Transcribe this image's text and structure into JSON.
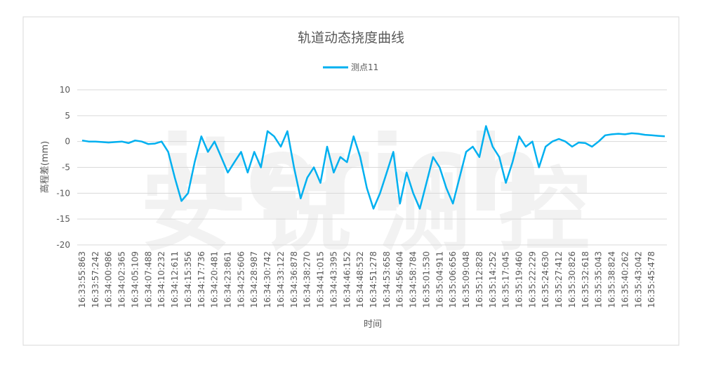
{
  "chart_data": {
    "type": "line",
    "title": "轨道动态挠度曲线",
    "x_label": "时间",
    "y_label": "高程差(mm)",
    "categories": [
      "16:33:55:863",
      null,
      "16:33:57:242",
      null,
      "16:34:00:986",
      null,
      "16:34:02:365",
      null,
      "16:34:05:109",
      null,
      "16:34:07:488",
      null,
      "16:34:10:232",
      null,
      "16:34:12:611",
      null,
      "16:34:15:356",
      null,
      "16:34:17:736",
      null,
      "16:34:20:481",
      null,
      "16:34:23:861",
      null,
      "16:34:25:606",
      null,
      "16:34:28:987",
      null,
      "16:34:30:742",
      null,
      "16:34:33:122",
      null,
      "16:34:36:878",
      null,
      "16:34:38:270",
      null,
      "16:34:41:015",
      null,
      "16:34:43:395",
      null,
      "16:34:46:152",
      null,
      "16:34:48:532",
      null,
      "16:34:51:278",
      null,
      "16:34:53:658",
      null,
      "16:34:56:404",
      null,
      "16:34:58:784",
      null,
      "16:35:01:530",
      null,
      "16:35:04:911",
      null,
      "16:35:06:656",
      null,
      "16:35:09:048",
      null,
      "16:35:12:828",
      null,
      "16:35:14:252",
      null,
      "16:35:17:045",
      null,
      "16:35:19:460",
      null,
      "16:35:22:229",
      null,
      "16:35:24:630",
      null,
      "16:35:27:412",
      null,
      "16:35:30:826",
      null,
      "16:35:32:618",
      null,
      "16:35:35:043",
      null,
      "16:35:38:824",
      null,
      "16:35:40:262",
      null,
      "16:35:43:042",
      null,
      "16:35:45:478",
      null,
      null
    ],
    "series": [
      {
        "name": "测点11",
        "color": "#00b0f0",
        "values": [
          0.2,
          0,
          0,
          -0.1,
          -0.2,
          -0.1,
          0,
          -0.3,
          0.2,
          0,
          -0.5,
          -0.4,
          0,
          -2,
          -7,
          -11.5,
          -10,
          -4,
          1,
          -2,
          0,
          -3,
          -6,
          -4,
          -2,
          -6,
          -2,
          -5,
          2,
          1,
          -1,
          2,
          -5,
          -11,
          -7,
          -5,
          -8,
          -1,
          -6,
          -3,
          -4,
          1,
          -3,
          -9,
          -13,
          -10,
          -6,
          -2,
          -12,
          -6,
          -10,
          -13,
          -8,
          -3,
          -5,
          -9,
          -12,
          -7,
          -2,
          -1,
          -3,
          3,
          -1,
          -3,
          -8,
          -4,
          1,
          -1,
          0,
          -5,
          -1,
          0,
          0.5,
          0,
          -1,
          -0.2,
          -0.3,
          -1,
          0,
          1.2,
          1.4,
          1.5,
          1.4,
          1.6,
          1.5,
          1.3,
          1.2,
          1.1,
          1.0
        ]
      }
    ],
    "ylim": [
      -20,
      10
    ],
    "yticks": [
      -20,
      -15,
      -10,
      -5,
      0,
      5,
      10
    ],
    "grid": true,
    "legend": "top"
  },
  "watermark": [
    "iterich",
    "安锐测控"
  ]
}
